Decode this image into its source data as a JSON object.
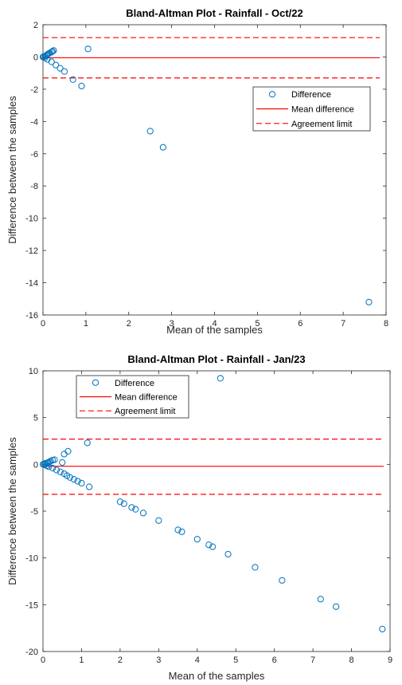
{
  "chart_data": [
    {
      "type": "scatter",
      "title": "Bland-Altman Plot - Rainfall - Oct/22",
      "xlabel": "Mean of the samples",
      "ylabel": "Difference between the samples",
      "xlim": [
        0,
        8
      ],
      "ylim": [
        -16,
        2
      ],
      "xticks": [
        0,
        1,
        2,
        3,
        4,
        5,
        6,
        7,
        8
      ],
      "yticks": [
        -16,
        -14,
        -12,
        -10,
        -8,
        -6,
        -4,
        -2,
        0,
        2
      ],
      "legend": {
        "placement": "right-middle",
        "entries": [
          "Difference",
          "Mean difference",
          "Agreement limit"
        ]
      },
      "mean_difference": -0.05,
      "agreement_limits": [
        -1.3,
        1.2
      ],
      "colors": {
        "points": "#0072BD",
        "lines": "#FF0000"
      },
      "points": [
        {
          "x": 0.0,
          "y": 0.0
        },
        {
          "x": 0.02,
          "y": 0.02
        },
        {
          "x": 0.05,
          "y": 0.05
        },
        {
          "x": 0.08,
          "y": 0.1
        },
        {
          "x": 0.1,
          "y": 0.15
        },
        {
          "x": 0.13,
          "y": 0.2
        },
        {
          "x": 0.16,
          "y": 0.25
        },
        {
          "x": 0.2,
          "y": 0.3
        },
        {
          "x": 0.22,
          "y": 0.35
        },
        {
          "x": 0.25,
          "y": 0.4
        },
        {
          "x": 0.05,
          "y": -0.05
        },
        {
          "x": 0.1,
          "y": -0.15
        },
        {
          "x": 0.2,
          "y": -0.3
        },
        {
          "x": 0.3,
          "y": -0.5
        },
        {
          "x": 0.4,
          "y": -0.7
        },
        {
          "x": 0.5,
          "y": -0.9
        },
        {
          "x": 0.7,
          "y": -1.4
        },
        {
          "x": 0.9,
          "y": -1.8
        },
        {
          "x": 1.05,
          "y": 0.5
        },
        {
          "x": 2.5,
          "y": -4.6
        },
        {
          "x": 2.8,
          "y": -5.6
        },
        {
          "x": 7.6,
          "y": -15.2
        }
      ]
    },
    {
      "type": "scatter",
      "title": "Bland-Altman Plot - Rainfall - Jan/23",
      "xlabel": "Mean of the samples",
      "ylabel": "Difference between the samples",
      "xlim": [
        0,
        9
      ],
      "ylim": [
        -20,
        10
      ],
      "xticks": [
        0,
        1,
        2,
        3,
        4,
        5,
        6,
        7,
        8,
        9
      ],
      "yticks": [
        -20,
        -15,
        -10,
        -5,
        0,
        5,
        10
      ],
      "legend": {
        "placement": "top-left",
        "entries": [
          "Difference",
          "Mean difference",
          "Agreement limit"
        ]
      },
      "mean_difference": -0.2,
      "agreement_limits": [
        -3.2,
        2.7
      ],
      "colors": {
        "points": "#0072BD",
        "lines": "#FF0000"
      },
      "points": [
        {
          "x": 0.0,
          "y": 0.0
        },
        {
          "x": 0.03,
          "y": 0.05
        },
        {
          "x": 0.06,
          "y": 0.1
        },
        {
          "x": 0.1,
          "y": 0.15
        },
        {
          "x": 0.13,
          "y": 0.2
        },
        {
          "x": 0.16,
          "y": 0.25
        },
        {
          "x": 0.2,
          "y": 0.35
        },
        {
          "x": 0.25,
          "y": 0.45
        },
        {
          "x": 0.3,
          "y": 0.5
        },
        {
          "x": 0.05,
          "y": -0.05
        },
        {
          "x": 0.1,
          "y": -0.15
        },
        {
          "x": 0.15,
          "y": -0.25
        },
        {
          "x": 0.25,
          "y": -0.4
        },
        {
          "x": 0.35,
          "y": -0.6
        },
        {
          "x": 0.45,
          "y": -0.8
        },
        {
          "x": 0.55,
          "y": -1.0
        },
        {
          "x": 0.62,
          "y": -1.2
        },
        {
          "x": 0.7,
          "y": -1.4
        },
        {
          "x": 0.8,
          "y": -1.6
        },
        {
          "x": 0.9,
          "y": -1.8
        },
        {
          "x": 1.0,
          "y": -2.0
        },
        {
          "x": 0.5,
          "y": 0.2
        },
        {
          "x": 0.55,
          "y": 1.1
        },
        {
          "x": 0.65,
          "y": 1.4
        },
        {
          "x": 1.15,
          "y": 2.3
        },
        {
          "x": 1.2,
          "y": -2.4
        },
        {
          "x": 2.0,
          "y": -4.0
        },
        {
          "x": 2.1,
          "y": -4.2
        },
        {
          "x": 2.3,
          "y": -4.6
        },
        {
          "x": 2.4,
          "y": -4.8
        },
        {
          "x": 2.6,
          "y": -5.2
        },
        {
          "x": 3.0,
          "y": -6.0
        },
        {
          "x": 3.5,
          "y": -7.0
        },
        {
          "x": 3.6,
          "y": -7.2
        },
        {
          "x": 4.0,
          "y": -8.0
        },
        {
          "x": 4.3,
          "y": -8.6
        },
        {
          "x": 4.4,
          "y": -8.8
        },
        {
          "x": 4.8,
          "y": -9.6
        },
        {
          "x": 4.6,
          "y": 9.2
        },
        {
          "x": 5.5,
          "y": -11.0
        },
        {
          "x": 6.2,
          "y": -12.4
        },
        {
          "x": 7.2,
          "y": -14.4
        },
        {
          "x": 7.6,
          "y": -15.2
        },
        {
          "x": 8.8,
          "y": -17.6
        }
      ]
    }
  ]
}
